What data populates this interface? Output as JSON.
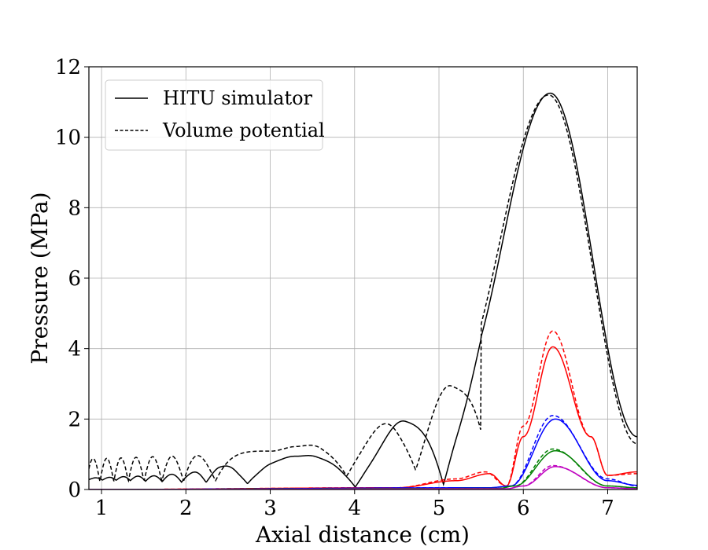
{
  "chart_data": {
    "type": "line",
    "title": "",
    "xlabel": "Axial distance (cm)",
    "ylabel": "Pressure (MPa)",
    "xlim": [
      0.85,
      7.35
    ],
    "ylim": [
      0,
      12
    ],
    "xticks": [
      "1",
      "2",
      "3",
      "4",
      "5",
      "6",
      "7"
    ],
    "yticks": [
      "0",
      "2",
      "4",
      "6",
      "8",
      "10",
      "12"
    ],
    "grid": true,
    "legend_position": "top-left",
    "legend": [
      {
        "label": "HITU simulator",
        "style": "solid"
      },
      {
        "label": "Volume potential",
        "style": "dashed"
      }
    ],
    "series": [
      {
        "color": "#000000",
        "style": "solid",
        "kind": "oscillating",
        "x": [
          0.85,
          1.5,
          2.0,
          2.2,
          2.4,
          2.6,
          2.8,
          3.0,
          3.3,
          3.55,
          3.85,
          4.15,
          4.6,
          5.2,
          6.32,
          7.35
        ],
        "y": [
          0.33,
          0.38,
          0.45,
          0.55,
          0.65,
          0.75,
          0.9,
          1.0,
          1.1,
          1.2,
          1.3,
          1.52,
          1.95,
          2.95,
          11.25,
          1.5
        ]
      },
      {
        "color": "#000000",
        "style": "dashed",
        "kind": "oscillating",
        "x": [
          0.85,
          2.0,
          2.5,
          3.0,
          3.3,
          3.6,
          4.0,
          4.5,
          5.15,
          6.3,
          7.35
        ],
        "y": [
          0.88,
          0.95,
          1.02,
          1.12,
          1.22,
          1.35,
          1.55,
          1.95,
          2.95,
          11.2,
          1.3
        ]
      },
      {
        "color": "#ff0000",
        "style": "solid",
        "kind": "peak",
        "x": [
          0.85,
          4.5,
          5.2,
          5.6,
          5.8,
          6.0,
          6.35,
          6.8,
          7.0,
          7.35
        ],
        "y": [
          0.0,
          0.05,
          0.25,
          0.45,
          0.1,
          1.5,
          4.05,
          1.5,
          0.4,
          0.5
        ]
      },
      {
        "color": "#ff0000",
        "style": "dashed",
        "kind": "peak",
        "x": [
          0.85,
          4.5,
          5.2,
          5.55,
          5.8,
          6.0,
          6.35,
          6.8,
          7.0,
          7.35
        ],
        "y": [
          0.0,
          0.05,
          0.3,
          0.5,
          0.1,
          1.8,
          4.5,
          1.5,
          0.4,
          0.45
        ]
      },
      {
        "color": "#0000ff",
        "style": "solid",
        "kind": "peak",
        "x": [
          0.85,
          5.6,
          5.85,
          6.38,
          7.0,
          7.35
        ],
        "y": [
          0.0,
          0.05,
          0.1,
          2.0,
          0.25,
          0.12
        ]
      },
      {
        "color": "#0000ff",
        "style": "dashed",
        "kind": "peak",
        "x": [
          0.85,
          5.6,
          5.85,
          6.35,
          7.0,
          7.35
        ],
        "y": [
          0.0,
          0.05,
          0.1,
          2.1,
          0.3,
          0.1
        ]
      },
      {
        "color": "#008000",
        "style": "solid",
        "kind": "peak",
        "x": [
          0.85,
          5.7,
          5.9,
          6.38,
          7.0,
          7.35
        ],
        "y": [
          0.0,
          0.03,
          0.1,
          1.1,
          0.1,
          0.05
        ]
      },
      {
        "color": "#008000",
        "style": "dashed",
        "kind": "peak",
        "x": [
          0.85,
          5.7,
          5.9,
          6.35,
          7.0,
          7.35
        ],
        "y": [
          0.0,
          0.03,
          0.1,
          1.15,
          0.1,
          0.05
        ]
      },
      {
        "color": "#bf00bf",
        "style": "solid",
        "kind": "peak",
        "x": [
          0.85,
          5.8,
          6.0,
          6.38,
          7.0,
          7.35
        ],
        "y": [
          0.0,
          0.02,
          0.1,
          0.65,
          0.05,
          0.02
        ]
      },
      {
        "color": "#bf00bf",
        "style": "dashed",
        "kind": "peak",
        "x": [
          0.85,
          5.8,
          6.0,
          6.35,
          7.0,
          7.35
        ],
        "y": [
          0.0,
          0.02,
          0.1,
          0.68,
          0.05,
          0.02
        ]
      }
    ]
  }
}
